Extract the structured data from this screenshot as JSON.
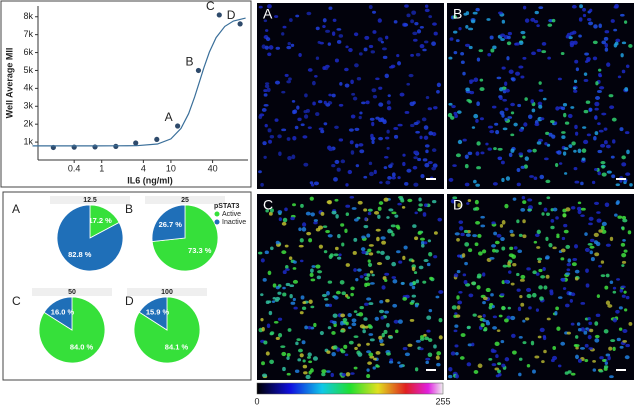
{
  "chart_data": [
    {
      "type": "scatter",
      "x_label": "IL6 (ng/ml)",
      "y_label": "Well Average MII",
      "log_x": true,
      "xlim": [
        0.12,
        130
      ],
      "xticks": [
        0.4,
        1,
        4,
        10,
        40
      ],
      "ylim": [
        0,
        8600
      ],
      "yticks": [
        {
          "value": 1000,
          "label": "1k"
        },
        {
          "value": 2000,
          "label": "2k"
        },
        {
          "value": 3000,
          "label": "3k"
        },
        {
          "value": 4000,
          "label": "4k"
        },
        {
          "value": 5000,
          "label": "5k"
        },
        {
          "value": 6000,
          "label": "6k"
        },
        {
          "value": 7000,
          "label": "7k"
        },
        {
          "value": 8000,
          "label": "8k"
        }
      ],
      "series": [
        {
          "type": "scatter",
          "color": "#2e4a6b",
          "x": [
            0.2,
            0.4,
            0.8,
            1.6,
            3.1,
            6.25,
            12.5,
            25,
            50,
            100
          ],
          "values": [
            700,
            720,
            730,
            760,
            950,
            1150,
            1900,
            5000,
            8100,
            7600
          ],
          "point_labels": [
            null,
            null,
            null,
            null,
            null,
            null,
            "A",
            "B",
            "C",
            "D"
          ]
        },
        {
          "type": "line",
          "color": "#3a6f9a",
          "x": [
            0.1,
            0.2,
            0.4,
            0.8,
            1.6,
            3.2,
            6.4,
            10,
            14,
            18,
            22,
            26,
            30,
            36,
            45,
            60,
            80,
            120
          ],
          "values": [
            790,
            790,
            790,
            790,
            791,
            800,
            896,
            1178,
            1765,
            2588,
            3510,
            4395,
            5157,
            6030,
            6833,
            7460,
            7760,
            7927
          ]
        }
      ]
    },
    {
      "type": "pie",
      "panel": "A",
      "title": "12.5",
      "categories": [
        "Active",
        "Inactive"
      ],
      "colors": [
        "#36e03a",
        "#1f6fb8"
      ],
      "values": [
        17.2,
        82.8
      ],
      "value_labels": [
        "17.2 %",
        "82.8 %"
      ]
    },
    {
      "type": "pie",
      "panel": "B",
      "title": "25",
      "categories": [
        "Active",
        "Inactive"
      ],
      "colors": [
        "#36e03a",
        "#1f6fb8"
      ],
      "values": [
        73.3,
        26.7
      ],
      "value_labels": [
        "73.3 %",
        "26.7 %"
      ],
      "legend_title": "pSTAT3",
      "legend": true
    },
    {
      "type": "pie",
      "panel": "C",
      "title": "50",
      "categories": [
        "Active",
        "Inactive"
      ],
      "colors": [
        "#36e03a",
        "#1f6fb8"
      ],
      "values": [
        84.0,
        16.0
      ],
      "value_labels": [
        "84.0 %",
        "16.0 %"
      ]
    },
    {
      "type": "pie",
      "panel": "D",
      "title": "100",
      "categories": [
        "Active",
        "Inactive"
      ],
      "colors": [
        "#36e03a",
        "#1f6fb8"
      ],
      "values": [
        84.1,
        15.9
      ],
      "value_labels": [
        "84.1 %",
        "15.9 %"
      ]
    }
  ],
  "images": [
    {
      "label": "A"
    },
    {
      "label": "B"
    },
    {
      "label": "C"
    },
    {
      "label": "D"
    }
  ],
  "colorbar": {
    "ticks": [
      0,
      255
    ],
    "lim": [
      0,
      255
    ]
  }
}
